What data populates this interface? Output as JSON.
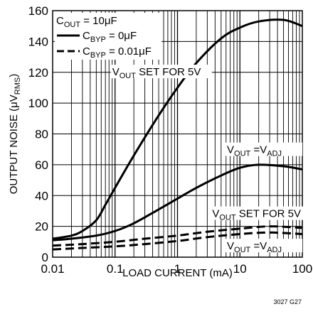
{
  "chart_data": {
    "type": "line",
    "xlabel": "LOAD CURRENT (mA)",
    "ylabel": {
      "main": "OUTPUT NOISE (",
      "mu": "μ",
      "v": "V",
      "sub": "RMS",
      "close": ")"
    },
    "x_scale": "log",
    "xlim": [
      0.01,
      100
    ],
    "ylim": [
      0,
      160
    ],
    "x_ticks": [
      "0.01",
      "0.1",
      "1",
      "10",
      "100"
    ],
    "x_tick_values": [
      0.01,
      0.1,
      1,
      10,
      100
    ],
    "y_ticks": [
      "0",
      "20",
      "40",
      "60",
      "80",
      "100",
      "120",
      "140",
      "160"
    ],
    "y_tick_values": [
      0,
      20,
      40,
      60,
      80,
      100,
      120,
      140,
      160
    ],
    "grid": true,
    "legend": {
      "title": {
        "main": "C",
        "sub": "OUT",
        "rest": " = 10μF"
      },
      "items": [
        {
          "main": "C",
          "sub": "BYP",
          "rest": " = 0μF",
          "style": "solid"
        },
        {
          "main": "C",
          "sub": "BYP",
          "rest": " = 0.01μF",
          "style": "dashed"
        }
      ]
    },
    "annotations": [
      {
        "id": "vout5_solid",
        "parts": [
          [
            "V",
            ""
          ],
          [
            "OUT",
            "sub"
          ],
          [
            " SET FOR 5V",
            ""
          ]
        ]
      },
      {
        "id": "voutadj_solid",
        "parts": [
          [
            "V",
            ""
          ],
          [
            "OUT",
            "sub"
          ],
          [
            " =V",
            ""
          ],
          [
            "ADJ",
            "sub"
          ]
        ]
      },
      {
        "id": "vout5_dashed",
        "parts": [
          [
            "V",
            ""
          ],
          [
            "OUT",
            "sub"
          ],
          [
            " SET FOR 5V",
            ""
          ]
        ]
      },
      {
        "id": "voutadj_dashed",
        "parts": [
          [
            "V",
            ""
          ],
          [
            "OUT",
            "sub"
          ],
          [
            " =V",
            ""
          ],
          [
            "ADJ",
            "sub"
          ]
        ]
      }
    ],
    "series": [
      {
        "name": "VOUT SET FOR 5V, CBYP = 0μF",
        "style": "solid",
        "x": [
          0.01,
          0.02,
          0.03,
          0.05,
          0.07,
          0.1,
          0.2,
          0.5,
          1,
          2,
          5,
          10,
          20,
          50,
          100
        ],
        "y": [
          12,
          14,
          17,
          24,
          34,
          45,
          66,
          92,
          110,
          126,
          142,
          149,
          153,
          154,
          150
        ]
      },
      {
        "name": "VOUT = VADJ, CBYP = 0μF",
        "style": "solid",
        "x": [
          0.01,
          0.02,
          0.05,
          0.1,
          0.2,
          0.5,
          1,
          2,
          5,
          10,
          20,
          50,
          100
        ],
        "y": [
          11,
          12,
          14,
          17,
          22,
          31,
          38,
          45,
          53,
          58,
          60,
          59,
          57
        ]
      },
      {
        "name": "VOUT SET FOR 5V, CBYP = 0.01μF",
        "style": "dashed",
        "x": [
          0.01,
          0.03,
          0.1,
          0.3,
          1,
          3,
          10,
          30,
          100
        ],
        "y": [
          7.5,
          8.5,
          10,
          12,
          14,
          16.5,
          18.5,
          20,
          19
        ]
      },
      {
        "name": "VOUT = VADJ, CBYP = 0.01μF",
        "style": "dashed",
        "x": [
          0.01,
          0.03,
          0.1,
          0.3,
          1,
          3,
          10,
          30,
          100
        ],
        "y": [
          5,
          6,
          7,
          8.5,
          10.5,
          13,
          15,
          16,
          15
        ]
      }
    ],
    "figure_id": "3027 G27"
  }
}
